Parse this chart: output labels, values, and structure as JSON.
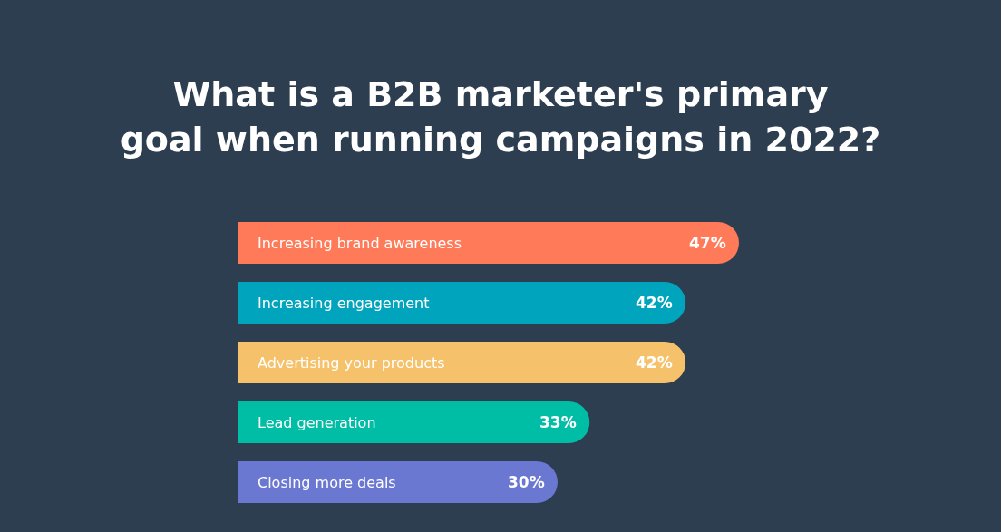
{
  "chart_data": {
    "type": "bar",
    "orientation": "horizontal",
    "title": "What is a B2B marketer's primary goal when running campaigns in 2022?",
    "categories": [
      "Increasing brand awareness",
      "Increasing engagement",
      "Advertising your products",
      "Lead generation",
      "Closing more deals"
    ],
    "values": [
      47,
      42,
      42,
      33,
      30
    ],
    "colors": [
      "#ff7a59",
      "#00a4bd",
      "#f5c26b",
      "#00bda5",
      "#6a78d1"
    ],
    "value_labels": [
      "47%",
      "42%",
      "42%",
      "33%",
      "30%"
    ],
    "legend": false
  }
}
